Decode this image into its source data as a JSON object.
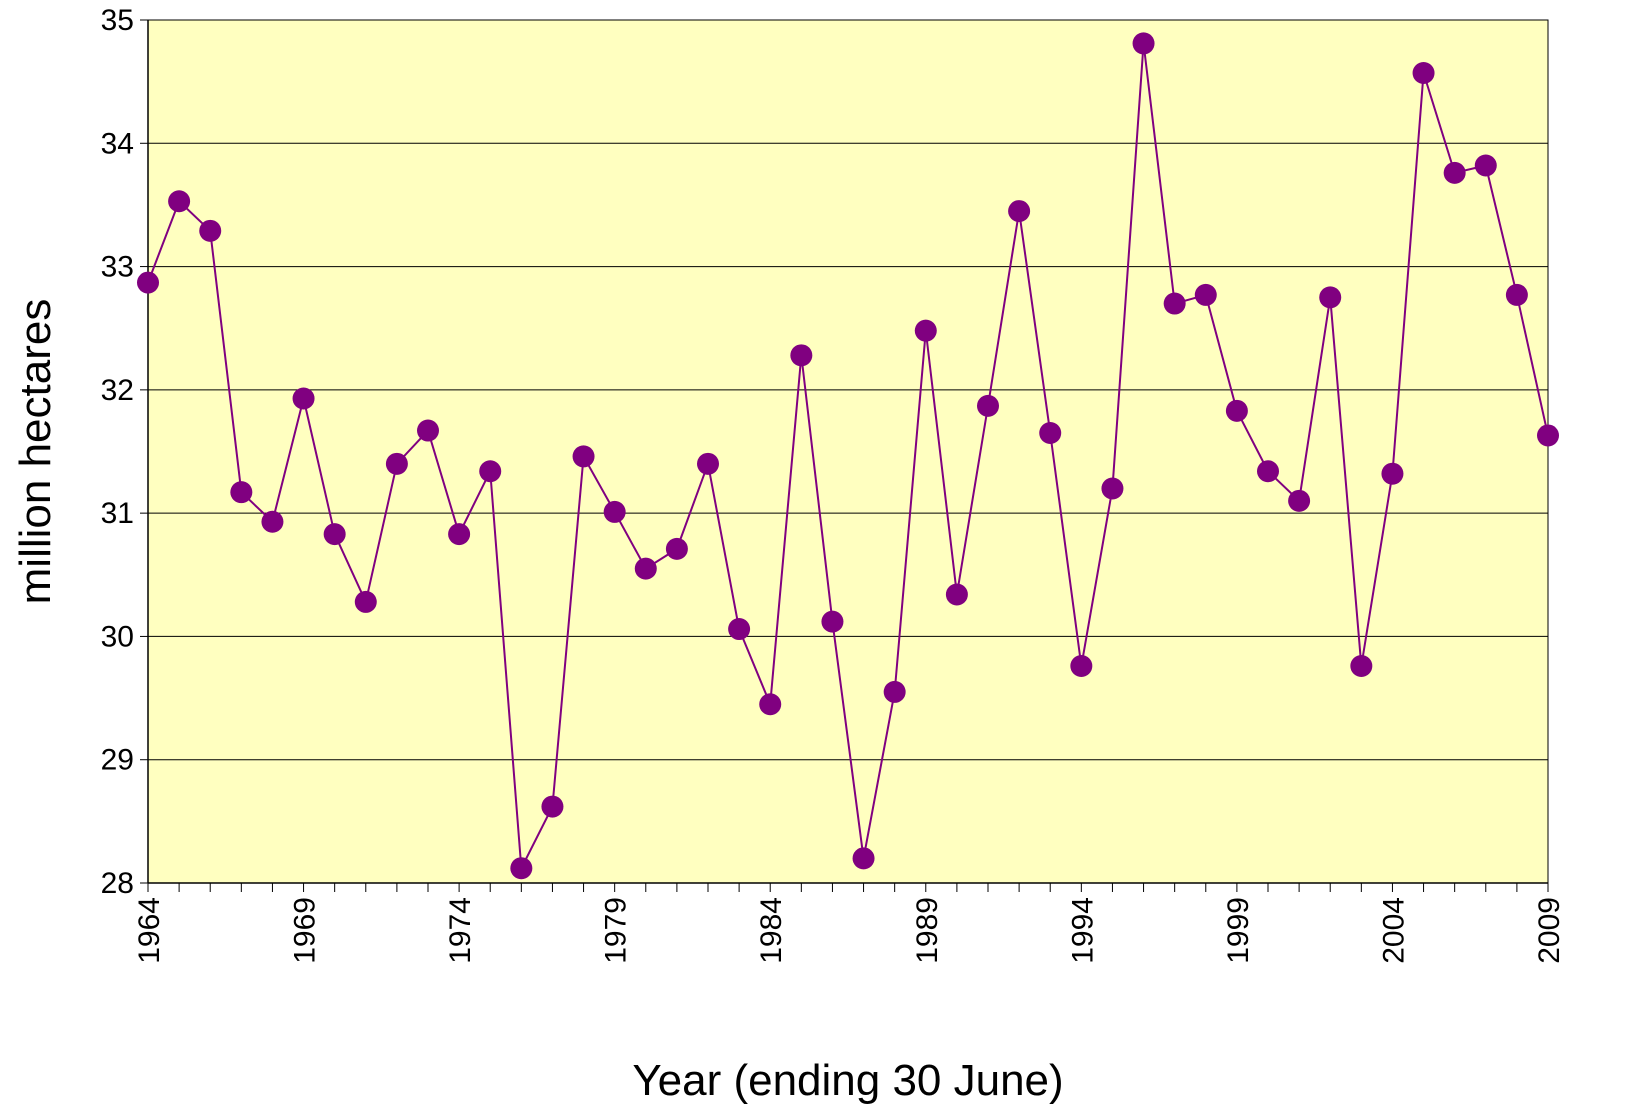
{
  "chart_data": {
    "type": "line",
    "title": "",
    "xlabel": "Year (ending 30 June)",
    "ylabel": "million hectares",
    "xlim": [
      1964,
      2009
    ],
    "ylim": [
      28,
      35
    ],
    "yticks": [
      28,
      29,
      30,
      31,
      32,
      33,
      34,
      35
    ],
    "xticks_labeled": [
      1964,
      1969,
      1974,
      1979,
      1984,
      1989,
      1994,
      1999,
      2004,
      2009
    ],
    "grid": "horizontal",
    "legend": "none",
    "colors": {
      "plot_background": "#FFFFC0",
      "series": "#800080",
      "grid": "#000000"
    },
    "series": [
      {
        "x": [
          1964,
          1965,
          1966,
          1967,
          1968,
          1969,
          1970,
          1971,
          1972,
          1973,
          1974,
          1975,
          1976,
          1977,
          1978,
          1979,
          1980,
          1981,
          1982,
          1983,
          1984,
          1985,
          1986,
          1987,
          1988,
          1989,
          1990,
          1991,
          1992,
          1993,
          1994,
          1995,
          1996,
          1997,
          1998,
          1999,
          2000,
          2001,
          2002,
          2003,
          2004,
          2005,
          2006,
          2007,
          2008,
          2009
        ],
        "values": [
          32.87,
          33.53,
          33.29,
          31.17,
          30.93,
          31.93,
          30.83,
          30.28,
          31.4,
          31.67,
          30.83,
          31.34,
          28.12,
          28.62,
          31.46,
          31.01,
          30.55,
          30.71,
          31.4,
          30.06,
          29.45,
          32.28,
          30.12,
          28.2,
          29.55,
          32.48,
          30.34,
          31.87,
          33.45,
          31.65,
          29.76,
          31.2,
          34.81,
          32.7,
          32.77,
          31.83,
          31.34,
          31.1,
          32.75,
          29.76,
          31.32,
          34.57,
          33.76,
          33.82,
          32.77,
          31.63
        ]
      }
    ]
  }
}
